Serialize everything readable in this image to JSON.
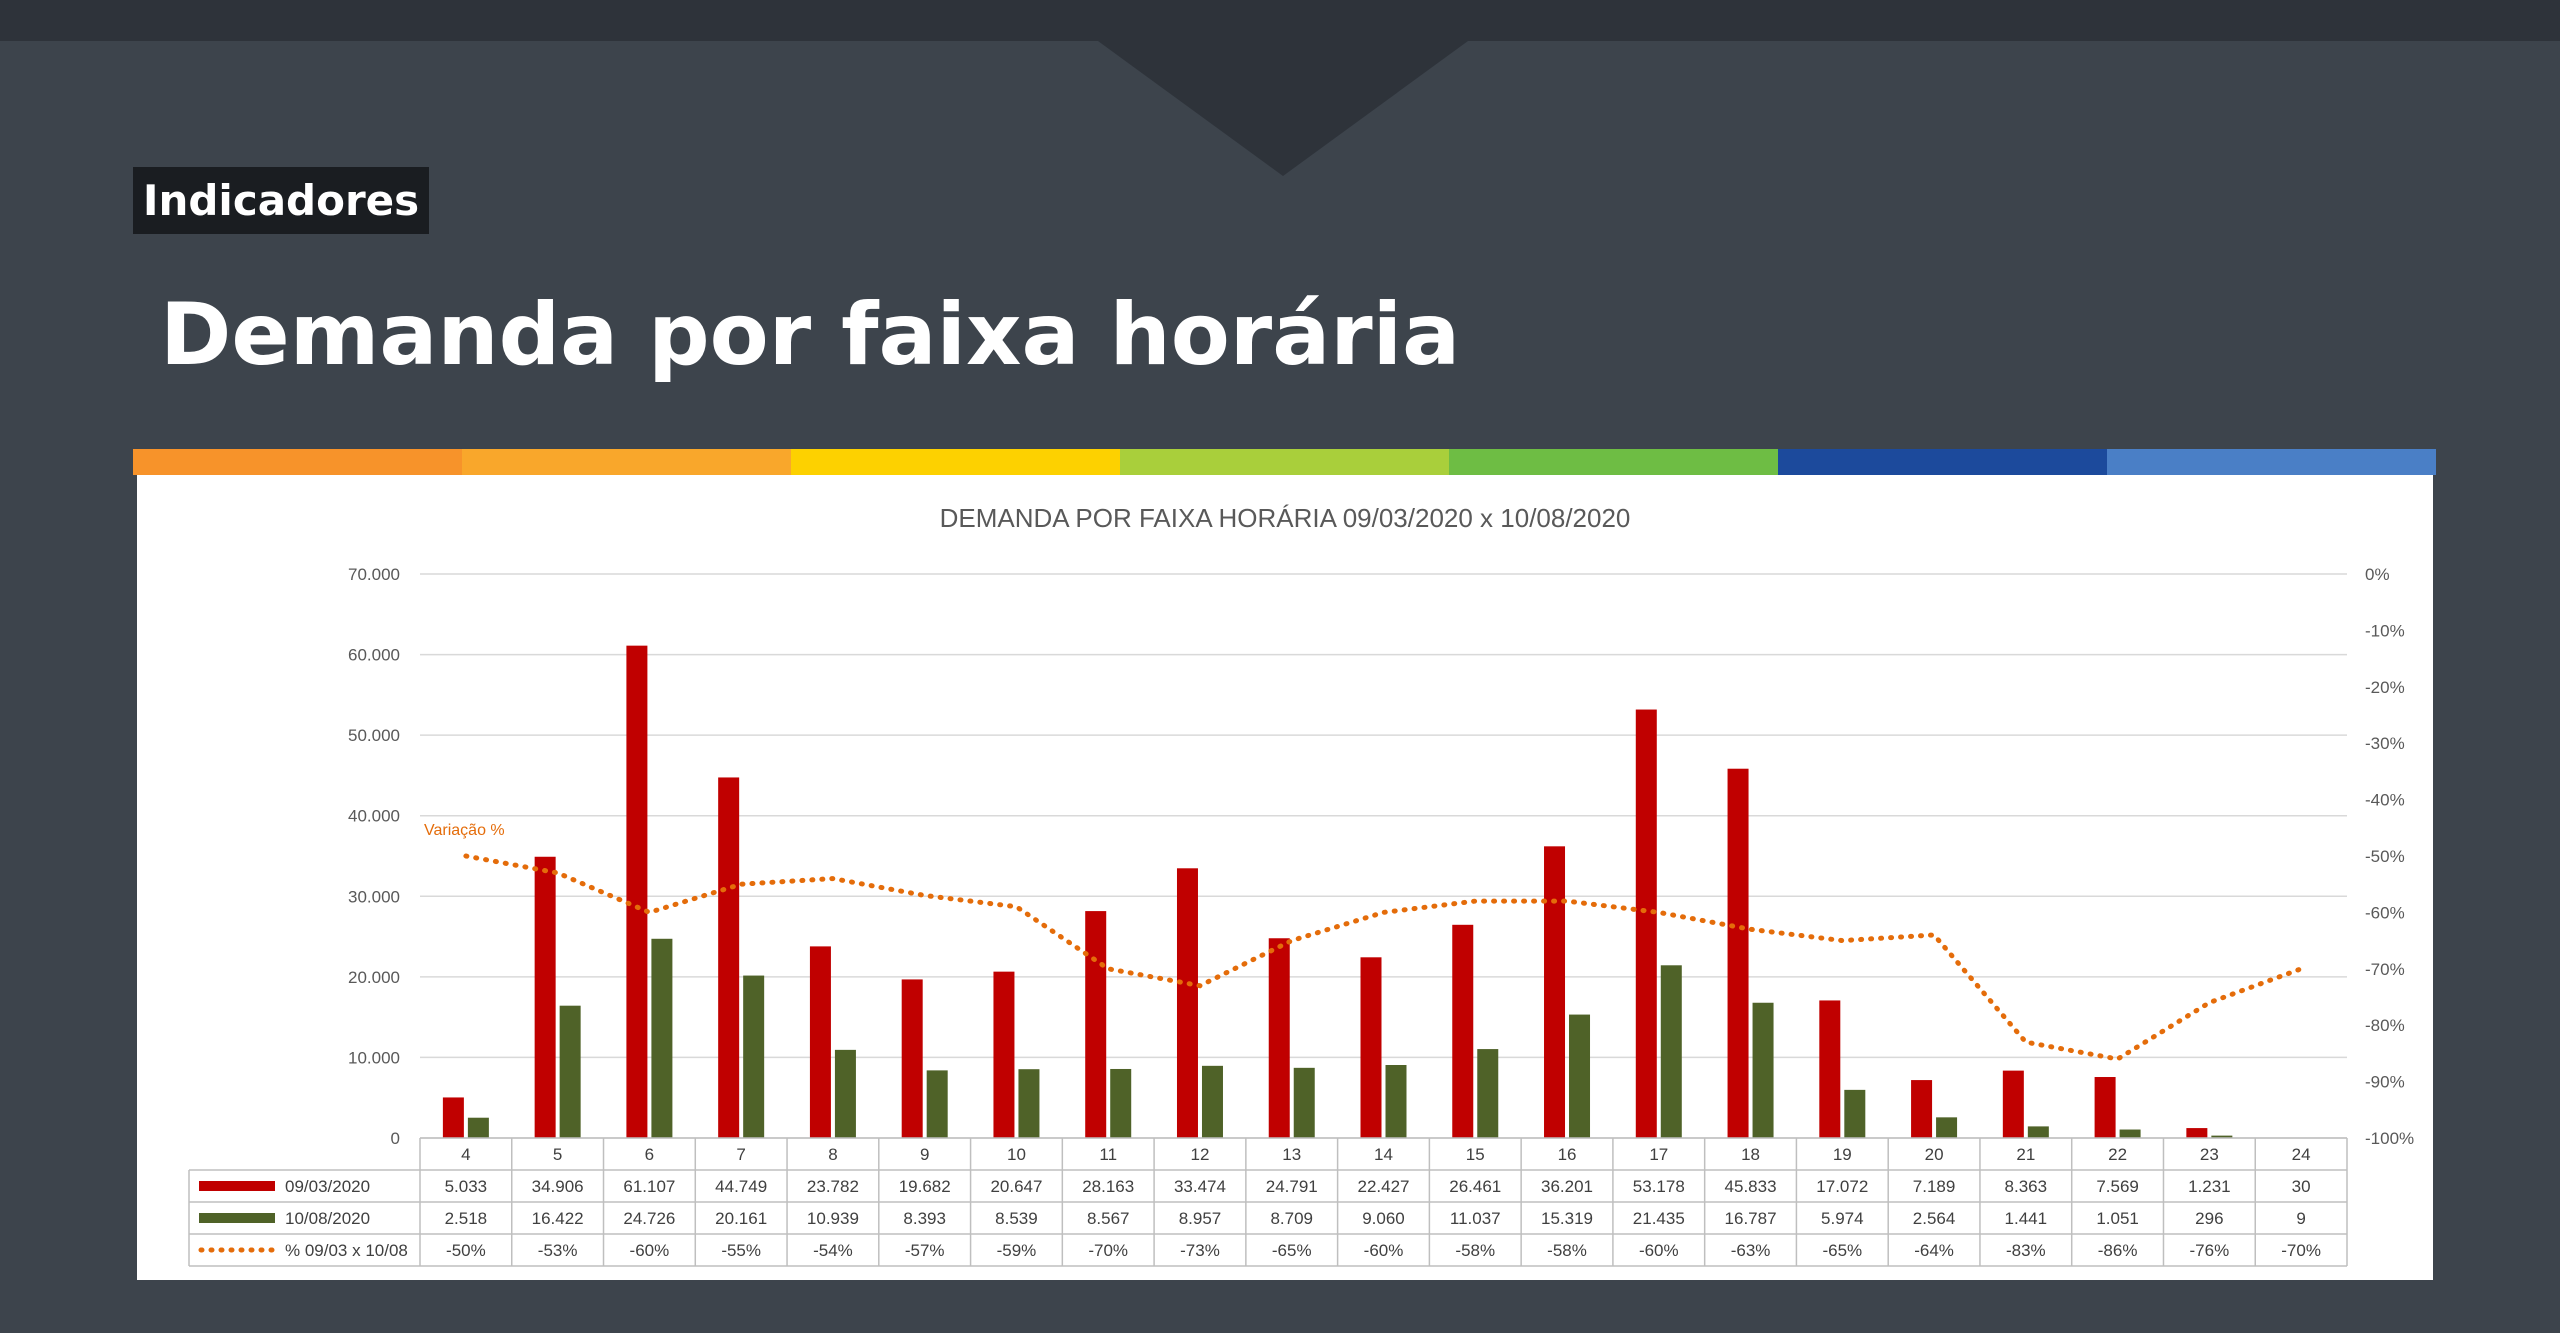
{
  "header": {
    "tag": "Indicadores",
    "title": "Demanda por faixa horária"
  },
  "stripe_colors": [
    "#f7932a",
    "#f9a72b",
    "#fdd100",
    "#a9cf3b",
    "#6ebd44",
    "#1c4a9c",
    "#4a7fc6"
  ],
  "chart_data": {
    "type": "bar",
    "title": "DEMANDA POR FAIXA HORÁRIA 09/03/2020 x 10/08/2020",
    "categories": [
      "4",
      "5",
      "6",
      "7",
      "8",
      "9",
      "10",
      "11",
      "12",
      "13",
      "14",
      "15",
      "16",
      "17",
      "18",
      "19",
      "20",
      "21",
      "22",
      "23",
      "24"
    ],
    "ylim": [
      0,
      70000
    ],
    "y_ticks": [
      "0",
      "10.000",
      "20.000",
      "30.000",
      "40.000",
      "50.000",
      "60.000",
      "70.000"
    ],
    "y2lim": [
      -100,
      0
    ],
    "y2_ticks": [
      "0%",
      "-10%",
      "-20%",
      "-30%",
      "-40%",
      "-50%",
      "-60%",
      "-70%",
      "-80%",
      "-90%",
      "-100%"
    ],
    "annotation": "Variação %",
    "grid": true,
    "series": [
      {
        "name": "09/03/2020",
        "type": "bar",
        "color": "#c00000",
        "values": [
          5033,
          34906,
          61107,
          44749,
          23782,
          19682,
          20647,
          28163,
          33474,
          24791,
          22427,
          26461,
          36201,
          53178,
          45833,
          17072,
          7189,
          8363,
          7569,
          1231,
          30
        ],
        "labels": [
          "5.033",
          "34.906",
          "61.107",
          "44.749",
          "23.782",
          "19.682",
          "20.647",
          "28.163",
          "33.474",
          "24.791",
          "22.427",
          "26.461",
          "36.201",
          "53.178",
          "45.833",
          "17.072",
          "7.189",
          "8.363",
          "7.569",
          "1.231",
          "30"
        ]
      },
      {
        "name": "10/08/2020",
        "type": "bar",
        "color": "#4f6228",
        "values": [
          2518,
          16422,
          24726,
          20161,
          10939,
          8393,
          8539,
          8567,
          8957,
          8709,
          9060,
          11037,
          15319,
          21435,
          16787,
          5974,
          2564,
          1441,
          1051,
          296,
          9
        ],
        "labels": [
          "2.518",
          "16.422",
          "24.726",
          "20.161",
          "10.939",
          "8.393",
          "8.539",
          "8.567",
          "8.957",
          "8.709",
          "9.060",
          "11.037",
          "15.319",
          "21.435",
          "16.787",
          "5.974",
          "2.564",
          "1.441",
          "1.051",
          "296",
          "9"
        ]
      },
      {
        "name": "% 09/03 x 10/08",
        "type": "line",
        "axis": "right",
        "color": "#e46c0a",
        "values": [
          -50,
          -53,
          -60,
          -55,
          -54,
          -57,
          -59,
          -70,
          -73,
          -65,
          -60,
          -58,
          -58,
          -60,
          -63,
          -65,
          -64,
          -83,
          -86,
          -76,
          -70
        ],
        "labels": [
          "-50%",
          "-53%",
          "-60%",
          "-55%",
          "-54%",
          "-57%",
          "-59%",
          "-70%",
          "-73%",
          "-65%",
          "-60%",
          "-58%",
          "-58%",
          "-60%",
          "-63%",
          "-65%",
          "-64%",
          "-83%",
          "-86%",
          "-76%",
          "-70%"
        ]
      }
    ]
  }
}
